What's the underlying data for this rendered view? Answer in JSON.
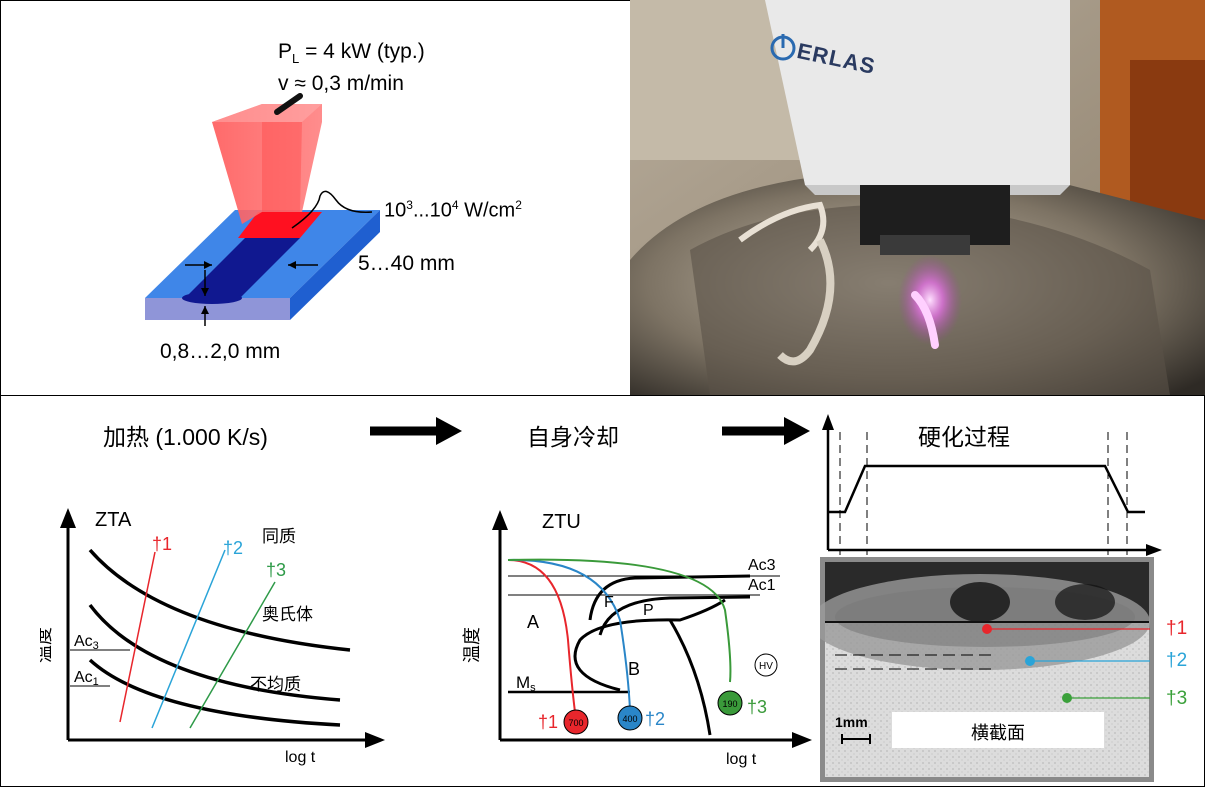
{
  "laser_diagram": {
    "power_label": "P",
    "power_sub": "L",
    "power_value": " = 4 kW (typ.)",
    "speed_label": "v ≈ 0,3 m/min",
    "intensity_base": "10",
    "intensity_exp1": "3",
    "intensity_mid": "...10",
    "intensity_exp2": "4",
    "intensity_unit": " W/cm",
    "intensity_unit_exp": "2",
    "width_label": "5…40 mm",
    "depth_label": "0,8…2,0 mm"
  },
  "photo": {
    "brand": "ERLAS"
  },
  "process": {
    "step1": "加热 (1.000 K/s)",
    "step2": "自身冷却",
    "step3": "硬化过程"
  },
  "zta_chart": {
    "title": "ZTA",
    "ylabel": "温度",
    "xlabel": "log t",
    "label_homogeneous": "同质",
    "label_austenite": "奥氏体",
    "label_inhomogeneous": "不均质",
    "ac3": "Ac",
    "ac3_sub": "3",
    "ac1": "Ac",
    "ac1_sub": "1",
    "curves": [
      {
        "name": "†1",
        "color": "#e8262c"
      },
      {
        "name": "†2",
        "color": "#2aa4d8"
      },
      {
        "name": "†3",
        "color": "#2e9a48"
      }
    ]
  },
  "ztu_chart": {
    "title": "ZTU",
    "ylabel": "温度",
    "xlabel": "log t",
    "ac3": "Ac3",
    "ac1": "Ac1",
    "region_a": "A",
    "region_f": "F",
    "region_p": "P",
    "region_b": "B",
    "ms": "M",
    "ms_sub": "s",
    "hv": "HV",
    "curves": [
      {
        "name": "†1",
        "hardness": "700",
        "color": "#e8262c"
      },
      {
        "name": "†2",
        "hardness": "400",
        "color": "#2a86c8"
      },
      {
        "name": "†3",
        "hardness": "190",
        "color": "#3a9a3a"
      }
    ]
  },
  "cross_section": {
    "scale": "1mm",
    "label": "横截面",
    "markers": [
      {
        "name": "†1",
        "color": "#e8262c"
      },
      {
        "name": "†2",
        "color": "#2aa4d8"
      },
      {
        "name": "†3",
        "color": "#3aa03a"
      }
    ]
  }
}
